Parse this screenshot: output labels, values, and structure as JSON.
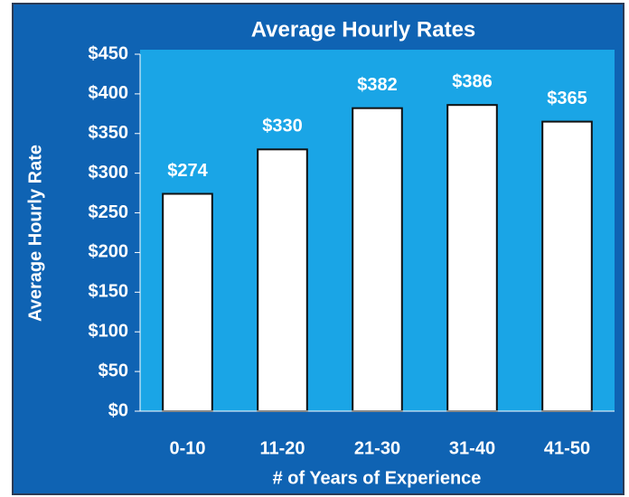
{
  "chart_data": {
    "type": "bar",
    "title": "Average Hourly Rates",
    "x_label": "# of Years of Experience",
    "y_label": "Average Hourly Rate",
    "categories": [
      "0-10",
      "11-20",
      "21-30",
      "31-40",
      "41-50"
    ],
    "values": [
      274,
      330,
      382,
      386,
      365
    ],
    "value_labels": [
      "$274",
      "$330",
      "$382",
      "$386",
      "$365"
    ],
    "color": "#ffffff",
    "ylim": [
      0,
      450
    ],
    "yticks": [
      {
        "value": 0,
        "label": "$0"
      },
      {
        "value": 50,
        "label": "$50"
      },
      {
        "value": 100,
        "label": "$100"
      },
      {
        "value": 150,
        "label": "$150"
      },
      {
        "value": 200,
        "label": "$200"
      },
      {
        "value": 250,
        "label": "$250"
      },
      {
        "value": 300,
        "label": "$300"
      },
      {
        "value": 350,
        "label": "$350"
      },
      {
        "value": 400,
        "label": "$400"
      },
      {
        "value": 450,
        "label": "$450"
      }
    ],
    "grid": false
  }
}
